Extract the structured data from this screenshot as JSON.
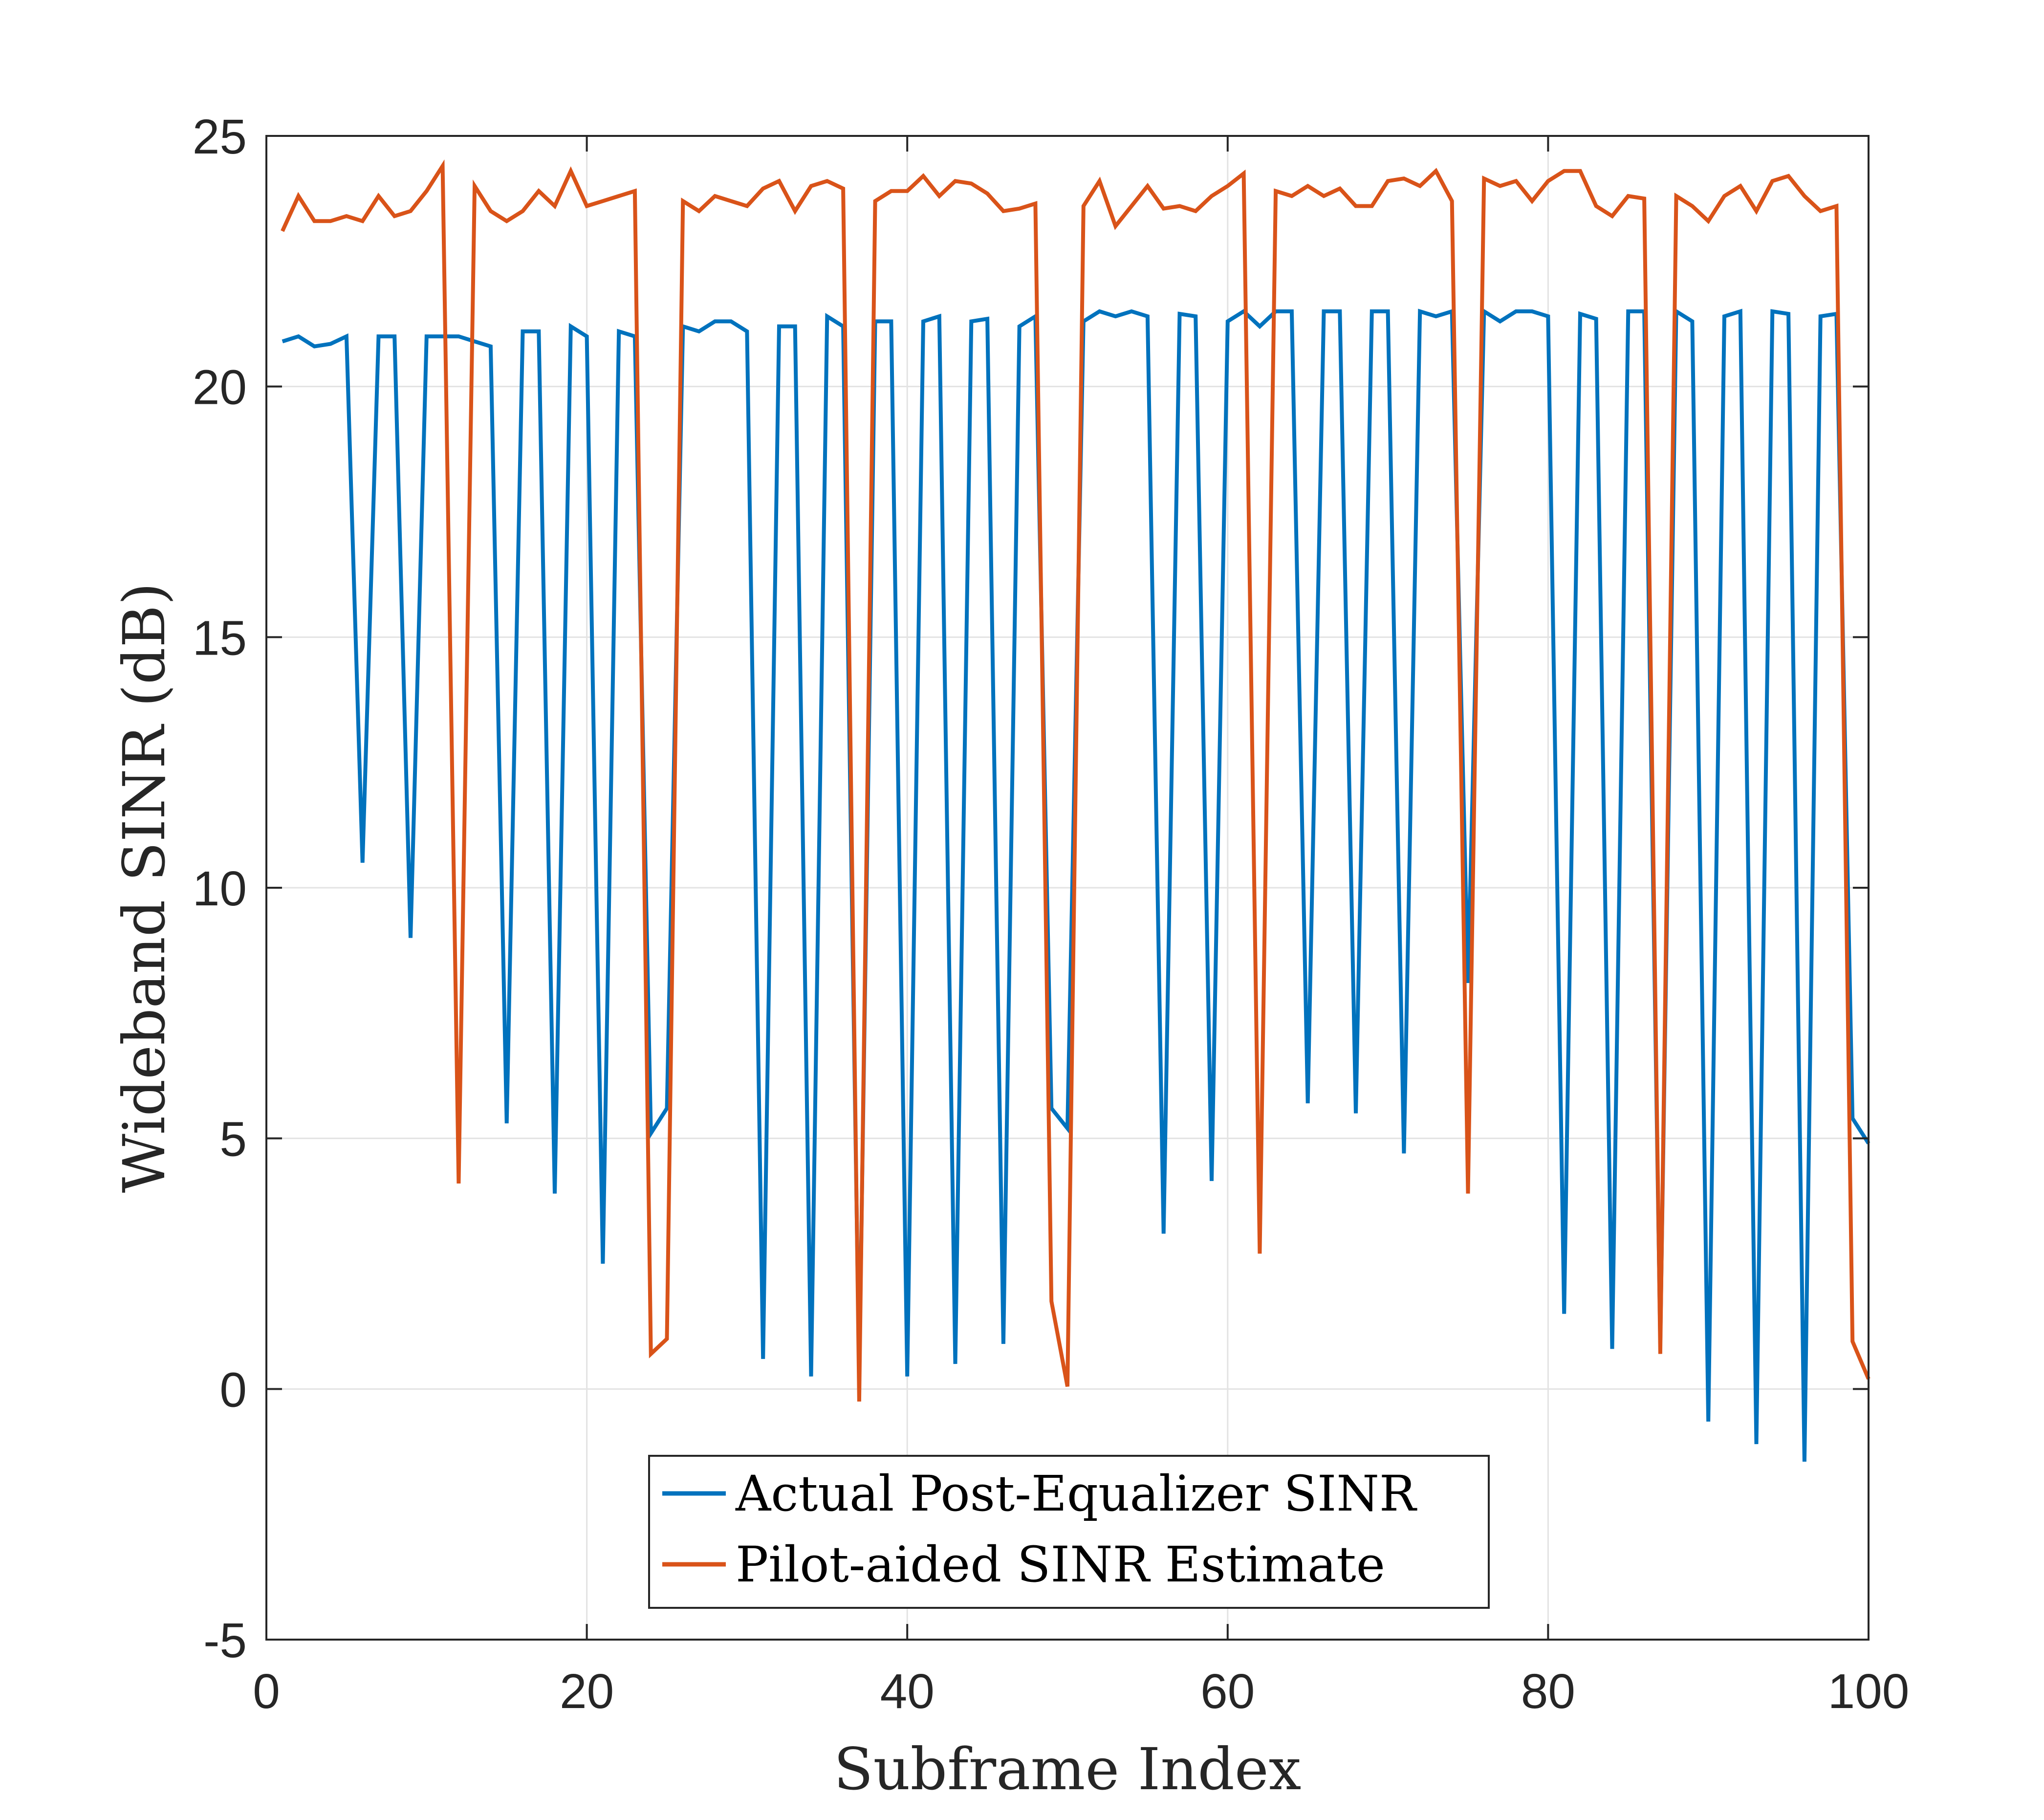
{
  "chart_data": {
    "type": "line",
    "title": "",
    "xlabel": "Subframe Index",
    "ylabel": "Wideband SINR (dB)",
    "xlim": [
      0,
      100
    ],
    "ylim": [
      -5,
      25
    ],
    "xticks": [
      0,
      20,
      40,
      60,
      80,
      100
    ],
    "yticks": [
      -5,
      0,
      5,
      10,
      15,
      20,
      25
    ],
    "xtick_labels": [
      "0",
      "20",
      "40",
      "60",
      "80",
      "100"
    ],
    "ytick_labels": [
      "-5",
      "0",
      "5",
      "10",
      "15",
      "20",
      "25"
    ],
    "grid": true,
    "legend_position": "bottom-center",
    "x": [
      1,
      2,
      3,
      4,
      5,
      6,
      7,
      8,
      9,
      10,
      11,
      12,
      13,
      14,
      15,
      16,
      17,
      18,
      19,
      20,
      21,
      22,
      23,
      24,
      25,
      26,
      27,
      28,
      29,
      30,
      31,
      32,
      33,
      34,
      35,
      36,
      37,
      38,
      39,
      40,
      41,
      42,
      43,
      44,
      45,
      46,
      47,
      48,
      49,
      50,
      51,
      52,
      53,
      54,
      55,
      56,
      57,
      58,
      59,
      60,
      61,
      62,
      63,
      64,
      65,
      66,
      67,
      68,
      69,
      70,
      71,
      72,
      73,
      74,
      75,
      76,
      77,
      78,
      79,
      80,
      81,
      82,
      83,
      84,
      85,
      86,
      87,
      88,
      89,
      90,
      91,
      92,
      93,
      94,
      95,
      96,
      97,
      98,
      99,
      100
    ],
    "series": [
      {
        "name": "Actual Post-Equalizer SINR",
        "color": "#0072BD",
        "values": [
          20.9,
          21.0,
          20.8,
          20.85,
          21.0,
          10.5,
          21.0,
          21.0,
          9.0,
          21.0,
          21.0,
          21.0,
          20.9,
          20.8,
          5.3,
          21.1,
          21.1,
          3.9,
          21.2,
          21.0,
          2.5,
          21.1,
          21.0,
          5.1,
          5.6,
          21.2,
          21.1,
          21.3,
          21.3,
          21.1,
          0.6,
          21.2,
          21.2,
          0.25,
          21.4,
          21.2,
          0.25,
          21.3,
          21.3,
          0.25,
          21.3,
          21.4,
          0.5,
          21.3,
          21.35,
          0.9,
          21.2,
          21.4,
          5.6,
          5.2,
          21.3,
          21.5,
          21.4,
          21.5,
          21.4,
          3.1,
          21.45,
          21.4,
          4.15,
          21.3,
          21.5,
          21.2,
          21.5,
          21.5,
          5.7,
          21.5,
          21.5,
          5.5,
          21.5,
          21.5,
          4.7,
          21.5,
          21.4,
          21.5,
          8.1,
          21.5,
          21.3,
          21.5,
          21.5,
          21.4,
          1.5,
          21.45,
          21.35,
          0.8,
          21.5,
          21.5,
          0.9,
          21.5,
          21.3,
          -0.65,
          21.4,
          21.5,
          -1.1,
          21.5,
          21.45,
          -1.45,
          21.4,
          21.45,
          5.4,
          4.9
        ]
      },
      {
        "name": "Pilot-aided SINR Estimate",
        "color": "#D95319",
        "values": [
          23.1,
          23.8,
          23.3,
          23.3,
          23.4,
          23.3,
          23.8,
          23.4,
          23.5,
          23.9,
          24.4,
          4.1,
          24.0,
          23.5,
          23.3,
          23.5,
          23.9,
          23.6,
          24.3,
          23.6,
          23.7,
          23.8,
          23.9,
          0.7,
          1.0,
          23.7,
          23.5,
          23.8,
          23.7,
          23.6,
          23.95,
          24.1,
          23.5,
          24.0,
          24.1,
          23.95,
          -0.25,
          23.7,
          23.9,
          23.9,
          24.2,
          23.8,
          24.1,
          24.05,
          23.85,
          23.5,
          23.55,
          23.65,
          1.75,
          0.05,
          23.6,
          24.1,
          23.2,
          23.6,
          24.0,
          23.55,
          23.6,
          23.5,
          23.8,
          24.0,
          24.25,
          2.7,
          23.9,
          23.8,
          24.0,
          23.8,
          23.95,
          23.6,
          23.6,
          24.1,
          24.15,
          24.0,
          24.3,
          23.7,
          3.9,
          24.15,
          24.0,
          24.1,
          23.7,
          24.1,
          24.3,
          24.3,
          23.6,
          23.4,
          23.8,
          23.75,
          0.7,
          23.8,
          23.6,
          23.3,
          23.8,
          24.0,
          23.5,
          24.1,
          24.2,
          23.8,
          23.5,
          23.6,
          0.95,
          0.2
        ]
      }
    ]
  }
}
